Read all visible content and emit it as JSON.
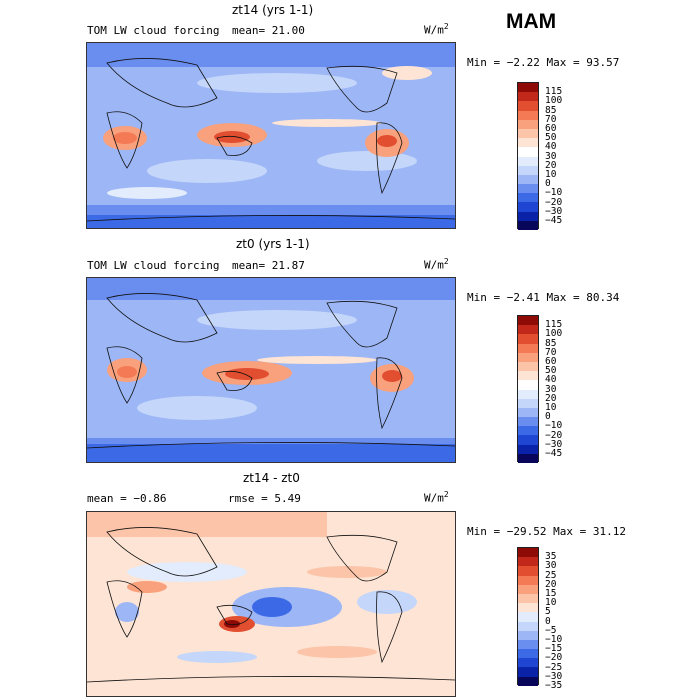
{
  "season": "MAM",
  "colors": {
    "abs_scale": [
      "#08065a",
      "#0a22a8",
      "#1e46d2",
      "#3c6ae6",
      "#6a8ef0",
      "#9cb6f6",
      "#c4d6fa",
      "#e2ecfc",
      "#ffffff",
      "#fde4d4",
      "#fcc4a8",
      "#f9a07c",
      "#f37a54",
      "#e24e30",
      "#c2281a",
      "#8e0a06"
    ],
    "diff_scale": [
      "#08065a",
      "#0a22a8",
      "#1e46d2",
      "#3c6ae6",
      "#6a8ef0",
      "#9cb6f6",
      "#c4d6fa",
      "#e2ecfc",
      "#fde4d4",
      "#fcc4a8",
      "#f9a07c",
      "#f37a54",
      "#e24e30",
      "#c2281a",
      "#8e0a06"
    ]
  },
  "chart_data": [
    {
      "type": "heatmap",
      "title": "zt14 (yrs 1-1)",
      "subtitle": "TOM LW cloud forcing",
      "mean_text": "mean=  21.00",
      "units": "W/m",
      "units_sup": "2",
      "min_max_text": "Min =  −2.22 Max =  93.57",
      "min": -2.22,
      "max": 93.57,
      "colorbar_levels": [
        "115",
        "100",
        "85",
        "70",
        "60",
        "50",
        "40",
        "30",
        "20",
        "10",
        "0",
        "−10",
        "−20",
        "−30",
        "−45"
      ]
    },
    {
      "type": "heatmap",
      "title": "zt0 (yrs 1-1)",
      "subtitle": "TOM LW cloud forcing",
      "mean_text": "mean=  21.87",
      "units": "W/m",
      "units_sup": "2",
      "min_max_text": "Min =  −2.41 Max =  80.34",
      "min": -2.41,
      "max": 80.34,
      "colorbar_levels": [
        "115",
        "100",
        "85",
        "70",
        "60",
        "50",
        "40",
        "30",
        "20",
        "10",
        "0",
        "−10",
        "−20",
        "−30",
        "−45"
      ]
    },
    {
      "type": "heatmap",
      "title": "zt14 - zt0",
      "mean_text": "mean =  −0.86",
      "rmse_text": "rmse =   5.49",
      "units": "W/m",
      "units_sup": "2",
      "min_max_text": "Min = −29.52 Max =  31.12",
      "min": -29.52,
      "max": 31.12,
      "colorbar_levels": [
        "35",
        "30",
        "25",
        "20",
        "15",
        "10",
        "5",
        "0",
        "−5",
        "−10",
        "−15",
        "−20",
        "−25",
        "−30",
        "−35"
      ]
    }
  ]
}
